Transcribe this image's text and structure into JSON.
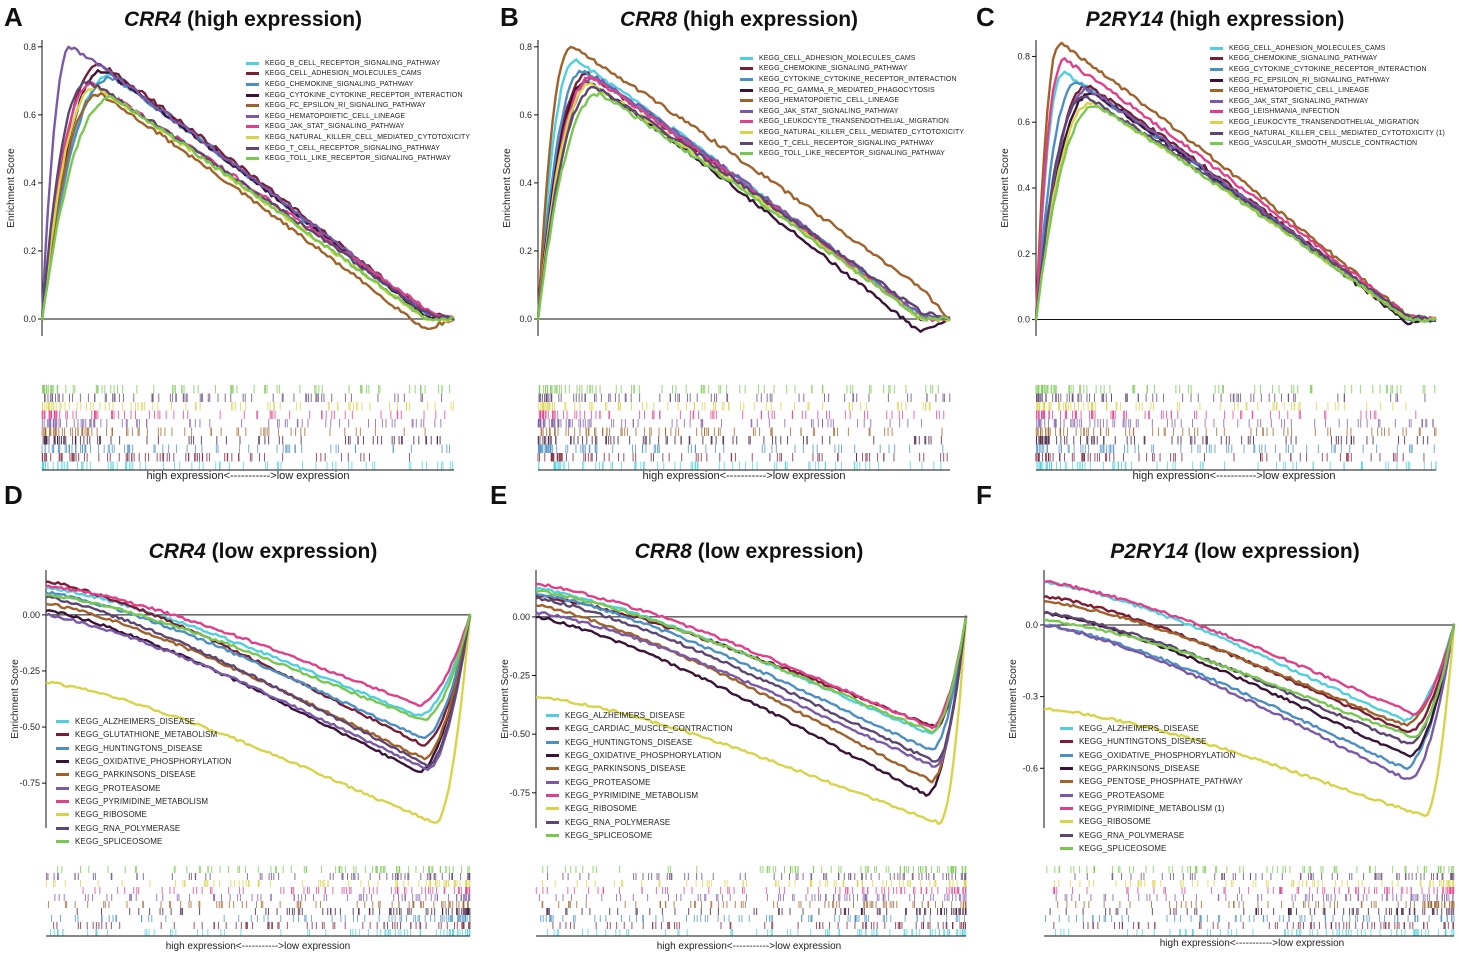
{
  "colors": [
    "#4fd0de",
    "#7b1e35",
    "#4c8fc4",
    "#3a1436",
    "#a0622a",
    "#7a5aa8",
    "#e0408a",
    "#d8d449",
    "#5e4672",
    "#78c850"
  ],
  "colors_low": [
    "#4fd0de",
    "#7b1e35",
    "#4c8fc4",
    "#3a1436",
    "#a0622a",
    "#7a5aa8",
    "#e0408a",
    "#d8d449",
    "#5e4672",
    "#78c850"
  ],
  "chart_data": [
    {
      "id": "A",
      "type": "line",
      "gene": "CRR4",
      "title_suffix": "(high expression)",
      "ylabel": "Enrichment Score",
      "xlabel": "high expression<----------->low expression",
      "ylim": [
        -0.05,
        0.82
      ],
      "yticks": [
        "0.0",
        "0.2",
        "0.4",
        "0.6",
        "0.8"
      ],
      "ytick_values": [
        0.0,
        0.2,
        0.4,
        0.6,
        0.8
      ],
      "series": [
        {
          "name": "KEGG_B_CELL_RECEPTOR_SIGNALING_PATHWAY",
          "peak": 0.72,
          "peak_x": 0.17,
          "end": 0.01
        },
        {
          "name": "KEGG_CELL_ADHESION_MOLECULES_CAMS",
          "peak": 0.75,
          "peak_x": 0.14,
          "end": 0.02
        },
        {
          "name": "KEGG_CHEMOKINE_SIGNALING_PATHWAY",
          "peak": 0.71,
          "peak_x": 0.17,
          "end": 0.01
        },
        {
          "name": "KEGG_CYTOKINE_CYTOKINE_RECEPTOR_INTERACTION",
          "peak": 0.73,
          "peak_x": 0.15,
          "end": 0.01
        },
        {
          "name": "KEGG_FC_EPSILON_RI_SIGNALING_PATHWAY",
          "peak": 0.66,
          "peak_x": 0.14,
          "end": -0.03
        },
        {
          "name": "KEGG_HEMATOPOIETIC_CELL_LINEAGE",
          "peak": 0.8,
          "peak_x": 0.07,
          "end": 0.02
        },
        {
          "name": "KEGG_JAK_STAT_SIGNALING_PATHWAY",
          "peak": 0.69,
          "peak_x": 0.12,
          "end": 0.03
        },
        {
          "name": "KEGG_NATURAL_KILLER_CELL_MEDIATED_CYTOTOXICITY",
          "peak": 0.68,
          "peak_x": 0.13,
          "end": 0.0
        },
        {
          "name": "KEGG_T_CELL_RECEPTOR_SIGNALING_PATHWAY",
          "peak": 0.7,
          "peak_x": 0.11,
          "end": 0.02
        },
        {
          "name": "KEGG_TOLL_LIKE_RECEPTOR_SIGNALING_PATHWAY",
          "peak": 0.65,
          "peak_x": 0.17,
          "end": 0.0
        }
      ]
    },
    {
      "id": "B",
      "type": "line",
      "gene": "CRR8",
      "title_suffix": "(high expression)",
      "ylabel": "Enrichment Score",
      "xlabel": "high expression<----------->low expression",
      "ylim": [
        -0.05,
        0.82
      ],
      "yticks": [
        "0.0",
        "0.2",
        "0.4",
        "0.6",
        "0.8"
      ],
      "ytick_values": [
        0.0,
        0.2,
        0.4,
        0.6,
        0.8
      ],
      "series": [
        {
          "name": "KEGG_CELL_ADHESION_MOLECULES_CAMS",
          "peak": 0.76,
          "peak_x": 0.09,
          "end": 0.0
        },
        {
          "name": "KEGG_CHEMOKINE_SIGNALING_PATHWAY",
          "peak": 0.72,
          "peak_x": 0.12,
          "end": 0.0
        },
        {
          "name": "KEGG_CYTOKINE_CYTOKINE_RECEPTOR_INTERACTION",
          "peak": 0.73,
          "peak_x": 0.11,
          "end": 0.01
        },
        {
          "name": "KEGG_FC_GAMMA_R_MEDIATED_PHAGOCYTOSIS",
          "peak": 0.7,
          "peak_x": 0.12,
          "end": -0.04
        },
        {
          "name": "KEGG_HEMATOPOIETIC_CELL_LINEAGE",
          "peak": 0.8,
          "peak_x": 0.08,
          "end": 0.09
        },
        {
          "name": "KEGG_JAK_STAT_SIGNALING_PATHWAY",
          "peak": 0.71,
          "peak_x": 0.14,
          "end": 0.01
        },
        {
          "name": "KEGG_LEUKOCYTE_TRANSENDOTHELIAL_MIGRATION",
          "peak": 0.71,
          "peak_x": 0.13,
          "end": 0.0
        },
        {
          "name": "KEGG_NATURAL_KILLER_CELL_MEDIATED_CYTOTOXICITY",
          "peak": 0.69,
          "peak_x": 0.13,
          "end": 0.0
        },
        {
          "name": "KEGG_T_CELL_RECEPTOR_SIGNALING_PATHWAY",
          "peak": 0.68,
          "peak_x": 0.14,
          "end": 0.02
        },
        {
          "name": "KEGG_TOLL_LIKE_RECEPTOR_SIGNALING_PATHWAY",
          "peak": 0.66,
          "peak_x": 0.15,
          "end": 0.0
        }
      ]
    },
    {
      "id": "C",
      "type": "line",
      "gene": "P2RY14",
      "title_suffix": "(high expression)",
      "ylabel": "Enrichment Score",
      "xlabel": "high expression<----------->low expression",
      "ylim": [
        -0.05,
        0.85
      ],
      "yticks": [
        "0.0",
        "0.2",
        "0.4",
        "0.6",
        "0.8"
      ],
      "ytick_values": [
        0.0,
        0.2,
        0.4,
        0.6,
        0.8
      ],
      "series": [
        {
          "name": "KEGG_CELL_ADHESION_MOLECULES_CAMS",
          "peak": 0.75,
          "peak_x": 0.07,
          "end": 0.0
        },
        {
          "name": "KEGG_CHEMOKINE_SIGNALING_PATHWAY",
          "peak": 0.71,
          "peak_x": 0.13,
          "end": 0.0
        },
        {
          "name": "KEGG_CYTOKINE_CYTOKINE_RECEPTOR_INTERACTION",
          "peak": 0.72,
          "peak_x": 0.1,
          "end": 0.0
        },
        {
          "name": "KEGG_FC_EPSILON_RI_SIGNALING_PATHWAY",
          "peak": 0.69,
          "peak_x": 0.14,
          "end": -0.01
        },
        {
          "name": "KEGG_HEMATOPOIETIC_CELL_LINEAGE",
          "peak": 0.84,
          "peak_x": 0.06,
          "end": 0.01
        },
        {
          "name": "KEGG_JAK_STAT_SIGNALING_PATHWAY",
          "peak": 0.7,
          "peak_x": 0.13,
          "end": 0.0
        },
        {
          "name": "KEGG_LEISHMANIA_INFECTION",
          "peak": 0.79,
          "peak_x": 0.07,
          "end": 0.01
        },
        {
          "name": "KEGG_LEUKOCYTE_TRANSENDOTHELIAL_MIGRATION",
          "peak": 0.66,
          "peak_x": 0.14,
          "end": 0.0
        },
        {
          "name": "KEGG_NATURAL_KILLER_CELL_MEDIATED_CYTOTOXICITY (1)",
          "peak": 0.68,
          "peak_x": 0.12,
          "end": 0.01
        },
        {
          "name": "KEGG_VASCULAR_SMOOTH_MUSCLE_CONTRACTION",
          "peak": 0.65,
          "peak_x": 0.15,
          "end": 0.0
        }
      ]
    },
    {
      "id": "D",
      "type": "line",
      "gene": "CRR4",
      "title_suffix": "(low expression)",
      "ylabel": "Enrichment Score",
      "xlabel": "high expression<----------->low expression",
      "ylim": [
        -0.95,
        0.2
      ],
      "yticks": [
        "0.00",
        "-0.25",
        "-0.50",
        "-0.75"
      ],
      "ytick_values": [
        0.0,
        -0.25,
        -0.5,
        -0.75
      ],
      "series": [
        {
          "name": "KEGG_ALZHEIMERS_DISEASE",
          "start": 0.12,
          "min": -0.45,
          "min_x": 0.88
        },
        {
          "name": "KEGG_GLUTATHIONE_METABOLISM",
          "start": 0.15,
          "min": -0.58,
          "min_x": 0.89
        },
        {
          "name": "KEGG_HUNTINGTONS_DISEASE",
          "start": 0.1,
          "min": -0.55,
          "min_x": 0.89
        },
        {
          "name": "KEGG_OXIDATIVE_PHOSPHORYLATION",
          "start": 0.02,
          "min": -0.7,
          "min_x": 0.88
        },
        {
          "name": "KEGG_PARKINSONS_DISEASE",
          "start": 0.05,
          "min": -0.64,
          "min_x": 0.89
        },
        {
          "name": "KEGG_PROTEASOME",
          "start": 0.0,
          "min": -0.69,
          "min_x": 0.9
        },
        {
          "name": "KEGG_PYRIMIDINE_METABOLISM",
          "start": 0.13,
          "min": -0.4,
          "min_x": 0.88
        },
        {
          "name": "KEGG_RIBOSOME",
          "start": -0.3,
          "min": -0.93,
          "min_x": 0.92
        },
        {
          "name": "KEGG_RNA_POLYMERASE",
          "start": 0.08,
          "min": -0.67,
          "min_x": 0.9
        },
        {
          "name": "KEGG_SPLICEOSOME",
          "start": 0.09,
          "min": -0.47,
          "min_x": 0.89
        }
      ]
    },
    {
      "id": "E",
      "type": "line",
      "gene": "CRR8",
      "title_suffix": "(low expression)",
      "ylabel": "Enrichment Score",
      "xlabel": "high expression<----------->low expression",
      "ylim": [
        -0.9,
        0.2
      ],
      "yticks": [
        "0.00",
        "-0.25",
        "-0.50",
        "-0.75"
      ],
      "ytick_values": [
        0.0,
        -0.25,
        -0.5,
        -0.75
      ],
      "series": [
        {
          "name": "KEGG_ALZHEIMERS_DISEASE",
          "start": 0.12,
          "min": -0.5,
          "min_x": 0.92
        },
        {
          "name": "KEGG_CARDIAC_MUSCLE_CONTRACTION",
          "start": 0.09,
          "min": -0.47,
          "min_x": 0.93
        },
        {
          "name": "KEGG_HUNTINGTONS_DISEASE",
          "start": 0.1,
          "min": -0.57,
          "min_x": 0.92
        },
        {
          "name": "KEGG_OXIDATIVE_PHOSPHORYLATION",
          "start": 0.0,
          "min": -0.76,
          "min_x": 0.91
        },
        {
          "name": "KEGG_PARKINSONS_DISEASE",
          "start": 0.05,
          "min": -0.7,
          "min_x": 0.92
        },
        {
          "name": "KEGG_PROTEASOME",
          "start": 0.02,
          "min": -0.64,
          "min_x": 0.93
        },
        {
          "name": "KEGG_PYRIMIDINE_METABOLISM",
          "start": 0.14,
          "min": -0.47,
          "min_x": 0.92
        },
        {
          "name": "KEGG_RIBOSOME",
          "start": -0.34,
          "min": -0.88,
          "min_x": 0.94
        },
        {
          "name": "KEGG_RNA_POLYMERASE",
          "start": 0.08,
          "min": -0.62,
          "min_x": 0.93
        },
        {
          "name": "KEGG_SPLICEOSOME",
          "start": 0.11,
          "min": -0.49,
          "min_x": 0.92
        }
      ]
    },
    {
      "id": "F",
      "type": "line",
      "gene": "P2RY14",
      "title_suffix": "(low expression)",
      "ylabel": "Enrichment Score",
      "xlabel": "high expression<----------->low expression",
      "ylim": [
        -0.85,
        0.23
      ],
      "yticks": [
        "0.0",
        "-0.3",
        "-0.6"
      ],
      "ytick_values": [
        0.0,
        -0.3,
        -0.6
      ],
      "series": [
        {
          "name": "KEGG_ALZHEIMERS_DISEASE",
          "start": 0.18,
          "min": -0.4,
          "min_x": 0.88
        },
        {
          "name": "KEGG_HUNTINGTONS_DISEASE",
          "start": 0.12,
          "min": -0.45,
          "min_x": 0.89
        },
        {
          "name": "KEGG_OXIDATIVE_PHOSPHORYLATION",
          "start": 0.0,
          "min": -0.6,
          "min_x": 0.88
        },
        {
          "name": "KEGG_PARKINSONS_DISEASE",
          "start": 0.05,
          "min": -0.55,
          "min_x": 0.89
        },
        {
          "name": "KEGG_PENTOSE_PHOSPHATE_PATHWAY",
          "start": 0.1,
          "min": -0.42,
          "min_x": 0.88
        },
        {
          "name": "KEGG_PROTEASOME",
          "start": 0.0,
          "min": -0.65,
          "min_x": 0.89
        },
        {
          "name": "KEGG_PYRIMIDINE_METABOLISM (1)",
          "start": 0.18,
          "min": -0.37,
          "min_x": 0.9
        },
        {
          "name": "KEGG_RIBOSOME",
          "start": -0.35,
          "min": -0.8,
          "min_x": 0.93
        },
        {
          "name": "KEGG_RNA_POLYMERASE",
          "start": 0.05,
          "min": -0.5,
          "min_x": 0.89
        },
        {
          "name": "KEGG_SPLICEOSOME",
          "start": 0.02,
          "min": -0.47,
          "min_x": 0.9
        }
      ]
    }
  ]
}
